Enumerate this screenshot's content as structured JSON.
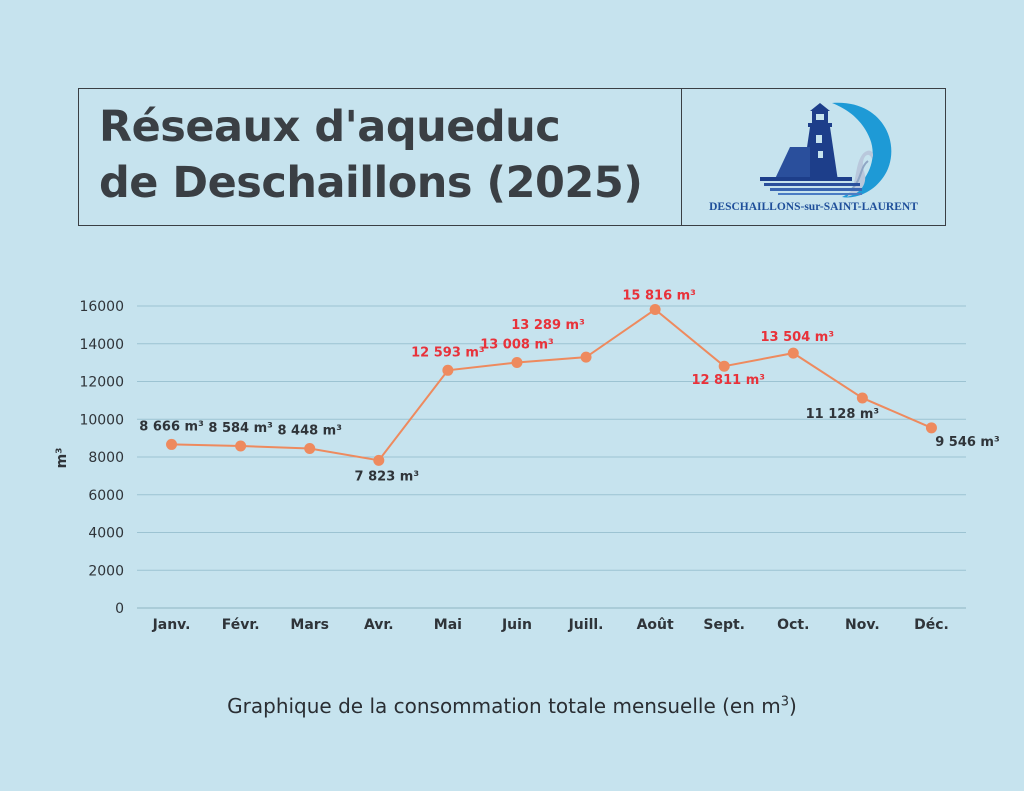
{
  "header": {
    "title_line1": "Réseaux d'aqueduc",
    "title_line2": "de Deschaillons (2025)",
    "logo_icon": "lighthouse-wave-logo-icon",
    "logo_text": "DESCHAILLONS-sur-SAINT-LAURENT"
  },
  "caption": {
    "text": "Graphique de la consommation totale mensuelle (en m",
    "superscript": "3",
    "suffix": ")"
  },
  "colors": {
    "background": "#c6e3ee",
    "line": "#ee8a5e",
    "label_high": "#e8323a",
    "label_normal": "#2f3439",
    "grid": "#9cc3d2"
  },
  "chart_data": {
    "type": "line",
    "title": "",
    "xlabel": "",
    "ylabel": "m³",
    "ylim": [
      0,
      16000
    ],
    "yticks": [
      0,
      2000,
      4000,
      6000,
      8000,
      10000,
      12000,
      14000,
      16000
    ],
    "grid": true,
    "categories": [
      "Janv.",
      "Févr.",
      "Mars",
      "Avr.",
      "Mai",
      "Juin",
      "Juill.",
      "Août",
      "Sept.",
      "Oct.",
      "Nov.",
      "Déc."
    ],
    "series": [
      {
        "name": "Consommation totale mensuelle",
        "values": [
          8666,
          8584,
          8448,
          7823,
          12593,
          13008,
          13289,
          15816,
          12811,
          13504,
          11128,
          9546
        ]
      }
    ],
    "data_labels": [
      "8 666 m³",
      "8 584 m³",
      "8 448 m³",
      "7 823 m³",
      "12 593 m³",
      "13 008 m³",
      "13 289 m³",
      "15 816 m³",
      "12 811 m³",
      "13 504 m³",
      "11 128 m³",
      "9 546 m³"
    ],
    "label_highlight": [
      false,
      false,
      false,
      false,
      true,
      true,
      true,
      true,
      true,
      true,
      false,
      false
    ]
  }
}
